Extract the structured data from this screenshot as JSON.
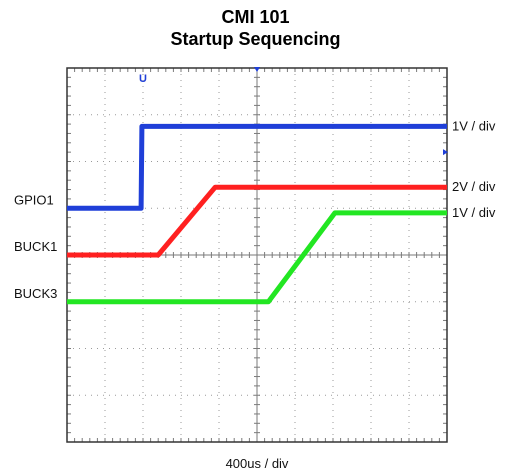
{
  "chart_data": {
    "type": "line",
    "title": "CMI  101",
    "subtitle": "Startup Sequencing",
    "xlabel": "400us / div",
    "xlim": [
      0,
      10
    ],
    "ylim": [
      -4,
      4
    ],
    "grid": true,
    "trigger_marker_text": "U",
    "series": [
      {
        "name": "GPIO1",
        "scale": "1V / div",
        "color": "#1f3fd8",
        "points": [
          [
            0,
            1.0
          ],
          [
            1.95,
            1.0
          ],
          [
            1.97,
            2.75
          ],
          [
            10,
            2.75
          ]
        ]
      },
      {
        "name": "BUCK1",
        "scale": "2V / div",
        "color": "#ff2020",
        "points": [
          [
            0,
            0.0
          ],
          [
            2.4,
            0.0
          ],
          [
            3.9,
            1.45
          ],
          [
            10,
            1.45
          ]
        ]
      },
      {
        "name": "BUCK3",
        "scale": "1V / div",
        "color": "#22e622",
        "points": [
          [
            0,
            -1.0
          ],
          [
            5.3,
            -1.0
          ],
          [
            7.05,
            0.9
          ],
          [
            10,
            0.9
          ]
        ]
      }
    ]
  }
}
